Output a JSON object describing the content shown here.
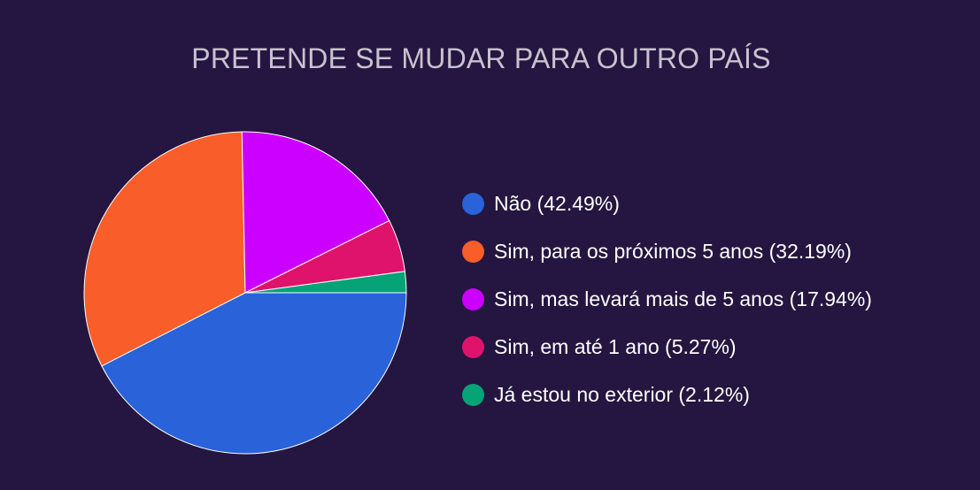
{
  "chart_data": {
    "type": "pie",
    "title": "PRETENDE SE MUDAR PARA OUTRO PAÍS",
    "legend_position": "right",
    "slices": [
      {
        "label": "Não (42.49%)",
        "value": 42.49,
        "color": "#2962d9"
      },
      {
        "label": "Sim, para os próximos 5 anos (32.19%)",
        "value": 32.19,
        "color": "#f95d2a"
      },
      {
        "label": "Sim, mas levará mais de 5 anos (17.94%)",
        "value": 17.94,
        "color": "#cc00ff"
      },
      {
        "label": "Sim, em até 1 ano (5.27%)",
        "value": 5.27,
        "color": "#e0136c"
      },
      {
        "label": "Já estou no exterior (2.12%)",
        "value": 2.12,
        "color": "#05a376"
      }
    ]
  },
  "colors": {
    "background": "#241640",
    "title": "#c8c2cf",
    "legend_text": "#ffffff",
    "slice_border": "#ffffff"
  }
}
